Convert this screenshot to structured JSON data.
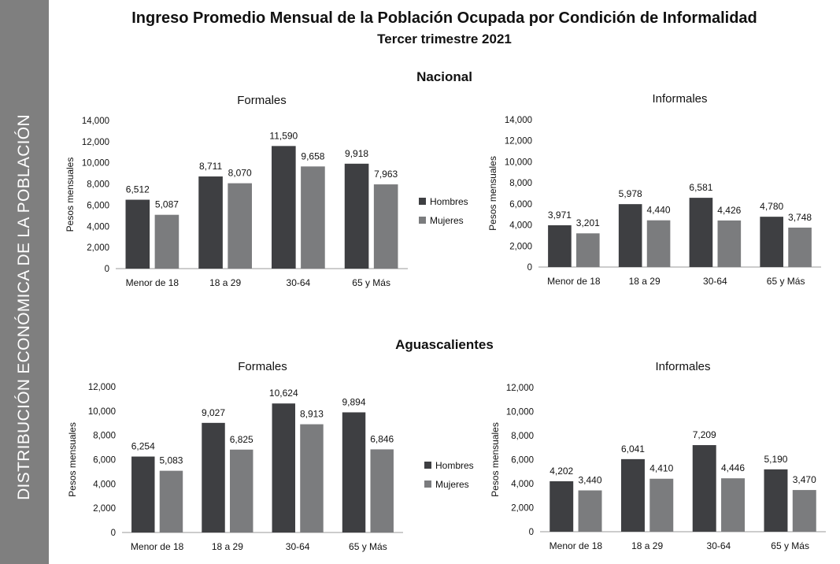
{
  "sidebar": {
    "label": "DISTRIBUCIÓN ECONÓMICA DE LA POBLACIÓN"
  },
  "title": "Ingreso Promedio Mensual de la Población Ocupada por Condición de Informalidad",
  "subtitle": "Tercer trimestre 2021",
  "colors": {
    "hombres": "#3e3f42",
    "mujeres": "#7b7c7e",
    "axis": "#999999",
    "sidebar": "#7f7f7f"
  },
  "sections": [
    {
      "title": "Nacional"
    },
    {
      "title": "Aguascalientes"
    }
  ],
  "chart_data": [
    {
      "type": "bar",
      "section": "Nacional",
      "title": "Formales",
      "ylabel": "Pesos mensuales",
      "xlabel": "",
      "ylim": [
        0,
        14000
      ],
      "yticks": [
        0,
        2000,
        4000,
        6000,
        8000,
        10000,
        12000,
        14000
      ],
      "ytick_labels": [
        "0",
        "2,000",
        "4,000",
        "6,000",
        "8,000",
        "10,000",
        "12,000",
        "14,000"
      ],
      "categories": [
        "Menor de 18",
        "18 a 29",
        "30-64",
        "65 y Más"
      ],
      "series": [
        {
          "name": "Hombres",
          "values": [
            6512,
            8711,
            11590,
            9918
          ],
          "labels": [
            "6,512",
            "8,711",
            "11,590",
            "9,918"
          ]
        },
        {
          "name": "Mujeres",
          "values": [
            5087,
            8070,
            9658,
            7963
          ],
          "labels": [
            "5,087",
            "8,070",
            "9,658",
            "7,963"
          ]
        }
      ],
      "legend": "right",
      "grid": false
    },
    {
      "type": "bar",
      "section": "Nacional",
      "title": "Informales",
      "ylabel": "Pesos mensuales",
      "xlabel": "",
      "ylim": [
        0,
        14000
      ],
      "yticks": [
        0,
        2000,
        4000,
        6000,
        8000,
        10000,
        12000,
        14000
      ],
      "ytick_labels": [
        "0",
        "2,000",
        "4,000",
        "6,000",
        "8,000",
        "10,000",
        "12,000",
        "14,000"
      ],
      "categories": [
        "Menor de 18",
        "18 a 29",
        "30-64",
        "65 y Más"
      ],
      "series": [
        {
          "name": "Hombres",
          "values": [
            3971,
            5978,
            6581,
            4780
          ],
          "labels": [
            "3,971",
            "5,978",
            "6,581",
            "4,780"
          ]
        },
        {
          "name": "Mujeres",
          "values": [
            3201,
            4440,
            4426,
            3748
          ],
          "labels": [
            "3,201",
            "4,440",
            "4,426",
            "3,748"
          ]
        }
      ],
      "legend": "none",
      "grid": false
    },
    {
      "type": "bar",
      "section": "Aguascalientes",
      "title": "Formales",
      "ylabel": "Pesos mensuales",
      "xlabel": "",
      "ylim": [
        0,
        12000
      ],
      "yticks": [
        0,
        2000,
        4000,
        6000,
        8000,
        10000,
        12000
      ],
      "ytick_labels": [
        "0",
        "2,000",
        "4,000",
        "6,000",
        "8,000",
        "10,000",
        "12,000"
      ],
      "categories": [
        "Menor de 18",
        "18 a 29",
        "30-64",
        "65 y Más"
      ],
      "series": [
        {
          "name": "Hombres",
          "values": [
            6254,
            9027,
            10624,
            9894
          ],
          "labels": [
            "6,254",
            "9,027",
            "10,624",
            "9,894"
          ]
        },
        {
          "name": "Mujeres",
          "values": [
            5083,
            6825,
            8913,
            6846
          ],
          "labels": [
            "5,083",
            "6,825",
            "8,913",
            "6,846"
          ]
        }
      ],
      "legend": "right",
      "grid": false
    },
    {
      "type": "bar",
      "section": "Aguascalientes",
      "title": "Informales",
      "ylabel": "Pesos mensuales",
      "xlabel": "",
      "ylim": [
        0,
        12000
      ],
      "yticks": [
        0,
        2000,
        4000,
        6000,
        8000,
        10000,
        12000
      ],
      "ytick_labels": [
        "0",
        "2,000",
        "4,000",
        "6,000",
        "8,000",
        "10,000",
        "12,000"
      ],
      "categories": [
        "Menor de 18",
        "18 a 29",
        "30-64",
        "65 y Más"
      ],
      "series": [
        {
          "name": "Hombres",
          "values": [
            4202,
            6041,
            7209,
            5190
          ],
          "labels": [
            "4,202",
            "6,041",
            "7,209",
            "5,190"
          ]
        },
        {
          "name": "Mujeres",
          "values": [
            3440,
            4410,
            4446,
            3470
          ],
          "labels": [
            "3,440",
            "4,410",
            "4,446",
            "3,470"
          ]
        }
      ],
      "legend": "none",
      "grid": false
    }
  ]
}
